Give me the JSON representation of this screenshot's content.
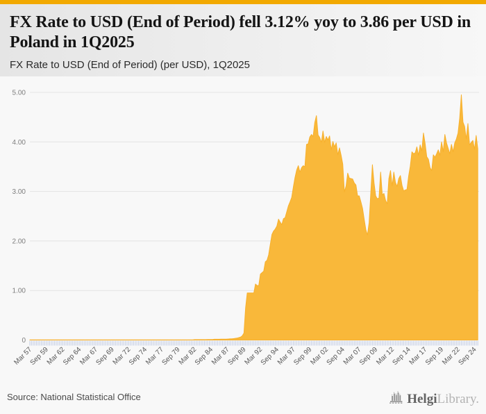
{
  "page": {
    "accent_color": "#F2A900",
    "background_color": "#f8f8f8"
  },
  "header": {
    "title": "FX Rate to USD (End of Period) fell 3.12% yoy to 3.86 per USD in Poland in 1Q2025",
    "subtitle": "FX Rate to USD (End of Period) (per USD), 1Q2025"
  },
  "footer": {
    "source": "Source: National Statistical Office",
    "logo_icon": "bar-chart-building-icon",
    "logo_text_primary": "Helgi",
    "logo_text_secondary": "Library."
  },
  "chart_data": {
    "type": "area",
    "title": "FX Rate to USD (End of Period) (per USD), 1Q2025",
    "series_name": "FX Rate to USD (End of Period)",
    "unit": "per USD",
    "country": "Poland",
    "frequency": "quarterly",
    "start_period": "Mar 1957",
    "end_period": "Mar 2025",
    "latest_value": 3.86,
    "yoy_change_pct": -3.12,
    "ylim": [
      0,
      5
    ],
    "ytick_labels": [
      "0",
      "1.00",
      "2.00",
      "3.00",
      "4.00",
      "5.00"
    ],
    "xtick_labels": [
      "Mar 57",
      "Sep 59",
      "Mar 62",
      "Sep 64",
      "Mar 67",
      "Sep 69",
      "Mar 72",
      "Sep 74",
      "Mar 77",
      "Sep 79",
      "Mar 82",
      "Sep 84",
      "Mar 87",
      "Sep 89",
      "Mar 92",
      "Sep 94",
      "Mar 97",
      "Sep 99",
      "Mar 02",
      "Sep 04",
      "Mar 07",
      "Sep 09",
      "Mar 12",
      "Sep 14",
      "Mar 17",
      "Sep 19",
      "Mar 22",
      "Sep 24"
    ],
    "xtick_every_n_points": 10,
    "grid_on": true,
    "legend": "none",
    "area_color": "#F9B83A",
    "area_edge_color": "#F7B02C",
    "quarter_tick_color": "#C7D0E6",
    "grid_color": "#E3E3E3",
    "values": [
      0.004,
      0.004,
      0.004,
      0.004,
      0.004,
      0.004,
      0.004,
      0.004,
      0.004,
      0.004,
      0.004,
      0.004,
      0.004,
      0.004,
      0.004,
      0.004,
      0.004,
      0.004,
      0.004,
      0.004,
      0.004,
      0.004,
      0.004,
      0.004,
      0.004,
      0.004,
      0.004,
      0.004,
      0.004,
      0.004,
      0.004,
      0.004,
      0.004,
      0.004,
      0.004,
      0.004,
      0.004,
      0.004,
      0.004,
      0.004,
      0.004,
      0.004,
      0.004,
      0.004,
      0.004,
      0.004,
      0.004,
      0.004,
      0.004,
      0.004,
      0.004,
      0.004,
      0.004,
      0.004,
      0.004,
      0.004,
      0.004,
      0.004,
      0.004,
      0.004,
      0.004,
      0.004,
      0.004,
      0.004,
      0.004,
      0.004,
      0.004,
      0.004,
      0.004,
      0.004,
      0.004,
      0.004,
      0.004,
      0.004,
      0.004,
      0.004,
      0.004,
      0.004,
      0.004,
      0.004,
      0.004,
      0.004,
      0.004,
      0.004,
      0.004,
      0.004,
      0.004,
      0.004,
      0.004,
      0.004,
      0.004,
      0.004,
      0.004,
      0.004,
      0.004,
      0.004,
      0.004,
      0.004,
      0.004,
      0.004,
      0.008,
      0.008,
      0.008,
      0.008,
      0.009,
      0.009,
      0.009,
      0.009,
      0.011,
      0.011,
      0.011,
      0.011,
      0.015,
      0.015,
      0.015,
      0.015,
      0.018,
      0.018,
      0.018,
      0.018,
      0.02,
      0.022,
      0.025,
      0.027,
      0.03,
      0.035,
      0.04,
      0.05,
      0.06,
      0.085,
      0.14,
      0.65,
      0.95,
      0.95,
      0.95,
      0.95,
      0.95,
      1.13,
      1.1,
      1.1,
      1.33,
      1.36,
      1.39,
      1.58,
      1.61,
      1.72,
      1.93,
      2.13,
      2.2,
      2.24,
      2.3,
      2.44,
      2.38,
      2.33,
      2.45,
      2.47,
      2.59,
      2.71,
      2.79,
      2.88,
      3.09,
      3.28,
      3.43,
      3.52,
      3.39,
      3.48,
      3.52,
      3.5,
      3.95,
      3.96,
      4.1,
      4.15,
      4.11,
      4.39,
      4.53,
      4.14,
      4.09,
      3.99,
      4.22,
      3.99,
      4.11,
      4.04,
      4.12,
      3.84,
      4.01,
      3.9,
      3.98,
      3.74,
      3.88,
      3.73,
      3.55,
      2.99,
      3.11,
      3.37,
      3.27,
      3.26,
      3.25,
      3.17,
      3.13,
      2.91,
      2.91,
      2.79,
      2.66,
      2.44,
      2.23,
      2.12,
      2.37,
      2.96,
      3.54,
      3.17,
      2.91,
      2.85,
      2.87,
      3.39,
      2.93,
      2.96,
      2.82,
      2.75,
      3.26,
      3.42,
      3.11,
      3.39,
      3.18,
      3.1,
      3.26,
      3.32,
      3.12,
      3.01,
      3.03,
      3.04,
      3.31,
      3.51,
      3.8,
      3.76,
      3.78,
      3.9,
      3.73,
      3.94,
      3.82,
      4.18,
      3.97,
      3.7,
      3.65,
      3.48,
      3.42,
      3.74,
      3.69,
      3.76,
      3.84,
      3.73,
      4.0,
      3.8,
      4.15,
      3.98,
      3.87,
      3.76,
      3.95,
      3.8,
      3.98,
      4.06,
      4.18,
      4.48,
      4.95,
      4.4,
      4.31,
      4.06,
      4.37,
      3.94,
      3.99,
      4.03,
      3.85,
      4.13,
      3.86
    ]
  }
}
